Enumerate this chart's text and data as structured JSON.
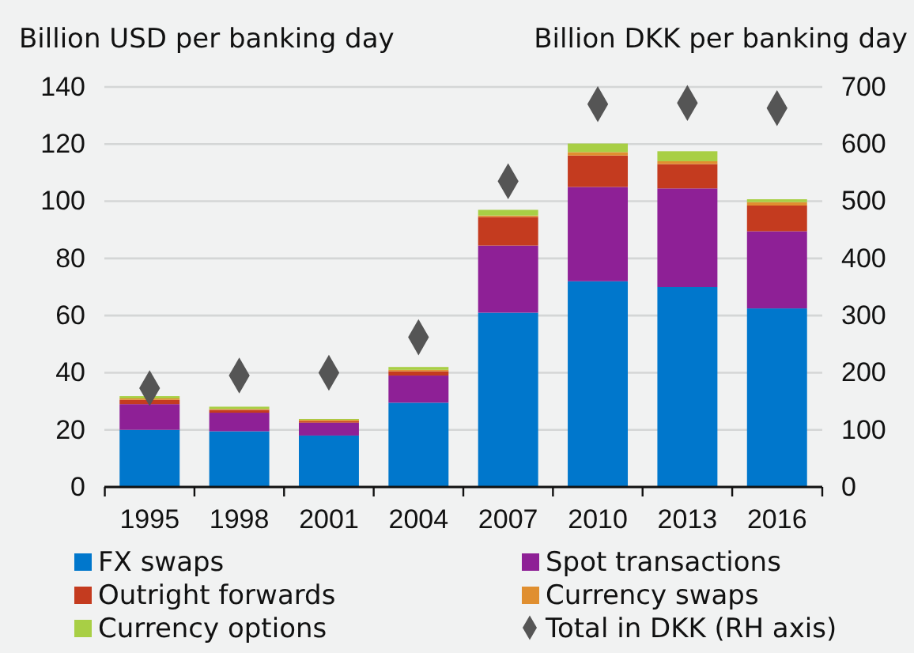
{
  "chart_data": {
    "type": "bar",
    "stacked": true,
    "ylabel": "Billion USD per banking day",
    "y2label": "Billion DKK per banking day",
    "categories": [
      "1995",
      "1998",
      "2001",
      "2004",
      "2007",
      "2010",
      "2013",
      "2016"
    ],
    "series": [
      {
        "name": "FX swaps",
        "color": "#0077cc",
        "values": [
          20,
          19.5,
          18,
          29.5,
          61,
          72,
          70,
          62.5
        ]
      },
      {
        "name": "Spot transactions",
        "color": "#8e2096",
        "values": [
          9,
          6.5,
          4.5,
          9.5,
          23.5,
          33,
          34.5,
          27
        ]
      },
      {
        "name": "Outright forwards",
        "color": "#c43b1f",
        "values": [
          1.5,
          1,
          0.5,
          1.5,
          10,
          11,
          8.5,
          9
        ]
      },
      {
        "name": "Currency swaps",
        "color": "#e08f30",
        "values": [
          0.5,
          0.3,
          0.5,
          0.5,
          0.5,
          1.2,
          1,
          1.2
        ]
      },
      {
        "name": "Currency options",
        "color": "#a8cf45",
        "values": [
          0.8,
          0.8,
          0.3,
          1,
          2,
          3,
          3.5,
          1
        ]
      },
      {
        "name": "Total in DKK (RH axis)",
        "type": "scatter",
        "axis": "y2",
        "marker": "diamond",
        "color": "#555555",
        "values": [
          173,
          195,
          200,
          262,
          535,
          670,
          672,
          663
        ]
      }
    ],
    "ylim": [
      0,
      140
    ],
    "yticks": [
      0,
      20,
      40,
      60,
      80,
      100,
      120,
      140
    ],
    "y2lim": [
      0,
      700
    ],
    "y2ticks": [
      0,
      100,
      200,
      300,
      400,
      500,
      600,
      700
    ],
    "grid": "y",
    "legend": "bottom"
  }
}
